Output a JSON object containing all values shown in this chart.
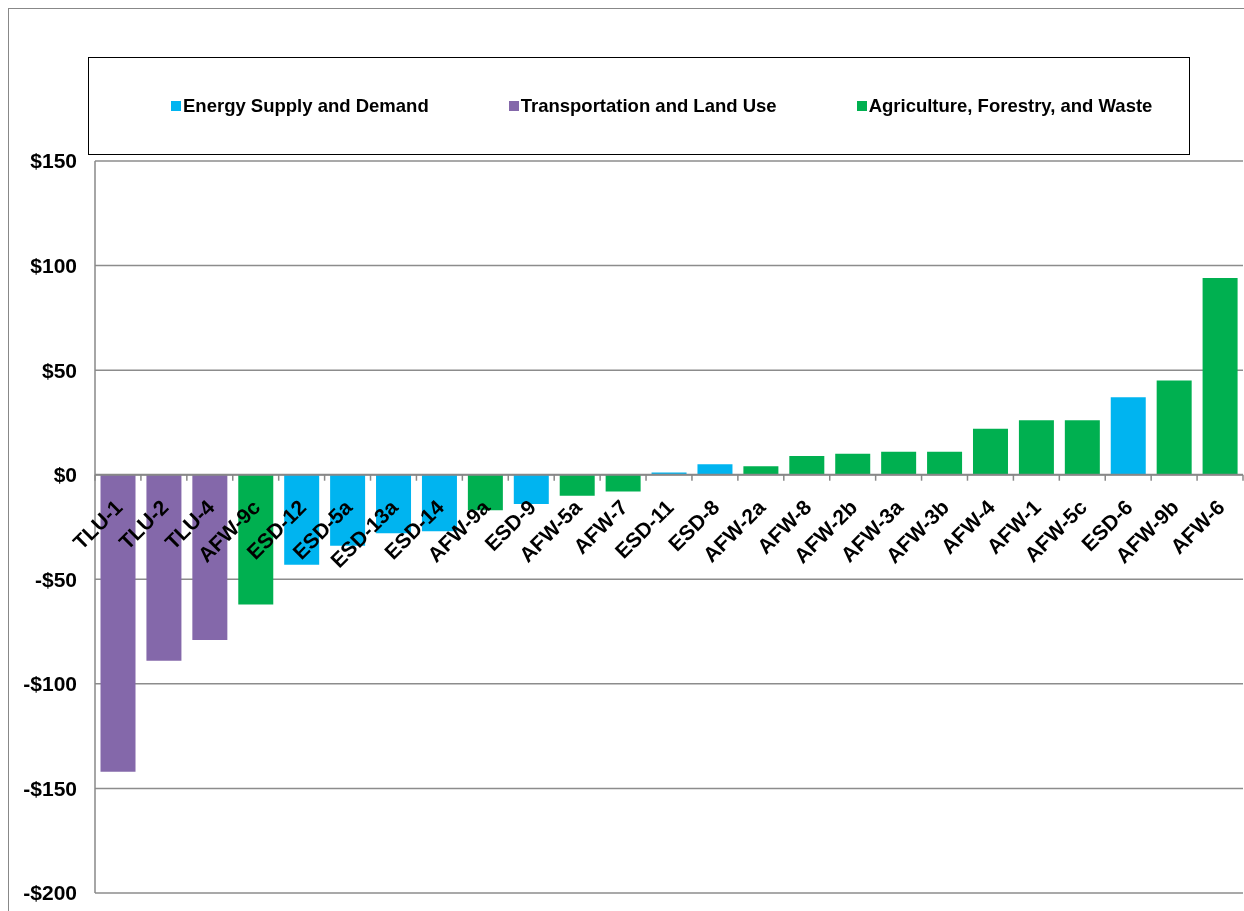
{
  "chart_data": {
    "type": "bar",
    "stacked": true,
    "categories": [
      "TLU-1",
      "TLU-2",
      "TLU-4",
      "AFW-9c",
      "ESD-12",
      "ESD-5a",
      "ESD-13a",
      "ESD-14",
      "AFW-9a",
      "ESD-9",
      "AFW-5a",
      "AFW-7",
      "ESD-11",
      "ESD-8",
      "AFW-2a",
      "AFW-8",
      "AFW-2b",
      "AFW-3a",
      "AFW-3b",
      "AFW-4",
      "AFW-1",
      "AFW-5c",
      "ESD-6",
      "AFW-9b",
      "AFW-6"
    ],
    "series": [
      {
        "name": "Energy Supply and Demand",
        "color": "#00b4f0",
        "values": [
          null,
          null,
          null,
          null,
          -43,
          -34,
          -28,
          -27,
          null,
          -14,
          null,
          null,
          1,
          5,
          null,
          null,
          null,
          null,
          null,
          null,
          null,
          null,
          37,
          null,
          null
        ]
      },
      {
        "name": "Transportation and Land Use",
        "color": "#8468aa",
        "values": [
          -142,
          -89,
          -79,
          null,
          null,
          null,
          null,
          null,
          null,
          null,
          null,
          null,
          null,
          null,
          null,
          null,
          null,
          null,
          null,
          null,
          null,
          null,
          null,
          null,
          null
        ]
      },
      {
        "name": "Agriculture, Forestry, and Waste",
        "color": "#00b050",
        "values": [
          null,
          null,
          null,
          -62,
          null,
          null,
          null,
          null,
          -17,
          null,
          -10,
          -8,
          null,
          null,
          4,
          9,
          10,
          11,
          11,
          22,
          26,
          26,
          null,
          45,
          94
        ]
      }
    ],
    "ylim": [
      -200,
      150
    ],
    "yticks": [
      {
        "value": -200,
        "label": "-$200"
      },
      {
        "value": -150,
        "label": "-$150"
      },
      {
        "value": -100,
        "label": "-$100"
      },
      {
        "value": -50,
        "label": "-$50"
      },
      {
        "value": 0,
        "label": "$0"
      },
      {
        "value": 50,
        "label": "$50"
      },
      {
        "value": 100,
        "label": "$100"
      },
      {
        "value": 150,
        "label": "$150"
      }
    ],
    "grid": "y",
    "legend": "top"
  }
}
